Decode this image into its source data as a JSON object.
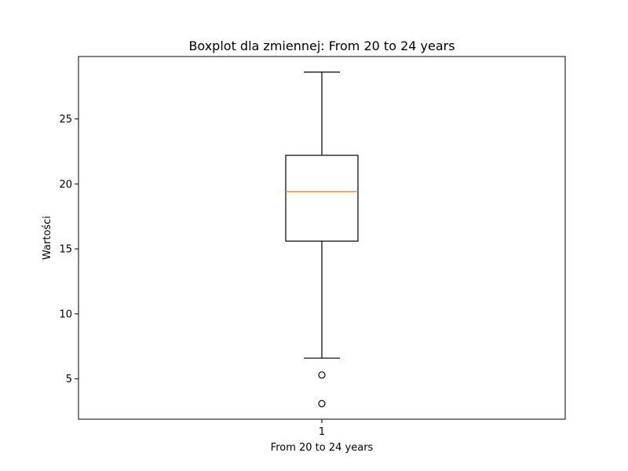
{
  "chart_data": {
    "type": "boxplot",
    "title": "Boxplot dla zmiennej: From 20 to 24 years",
    "xlabel": "From 20 to 24 years",
    "ylabel": "Wartości",
    "categories": [
      "1"
    ],
    "ylim": [
      1.9,
      29.8
    ],
    "yticks": [
      5,
      10,
      15,
      20,
      25
    ],
    "grid": false,
    "boxes": [
      {
        "category": "1",
        "whisker_low": 6.6,
        "q1": 15.6,
        "median": 19.4,
        "q3": 22.2,
        "whisker_high": 28.6,
        "outliers": [
          5.3,
          3.1
        ]
      }
    ],
    "colors": {
      "box": "#000000",
      "median": "#ff7f0e",
      "outlier": "#000000"
    }
  }
}
